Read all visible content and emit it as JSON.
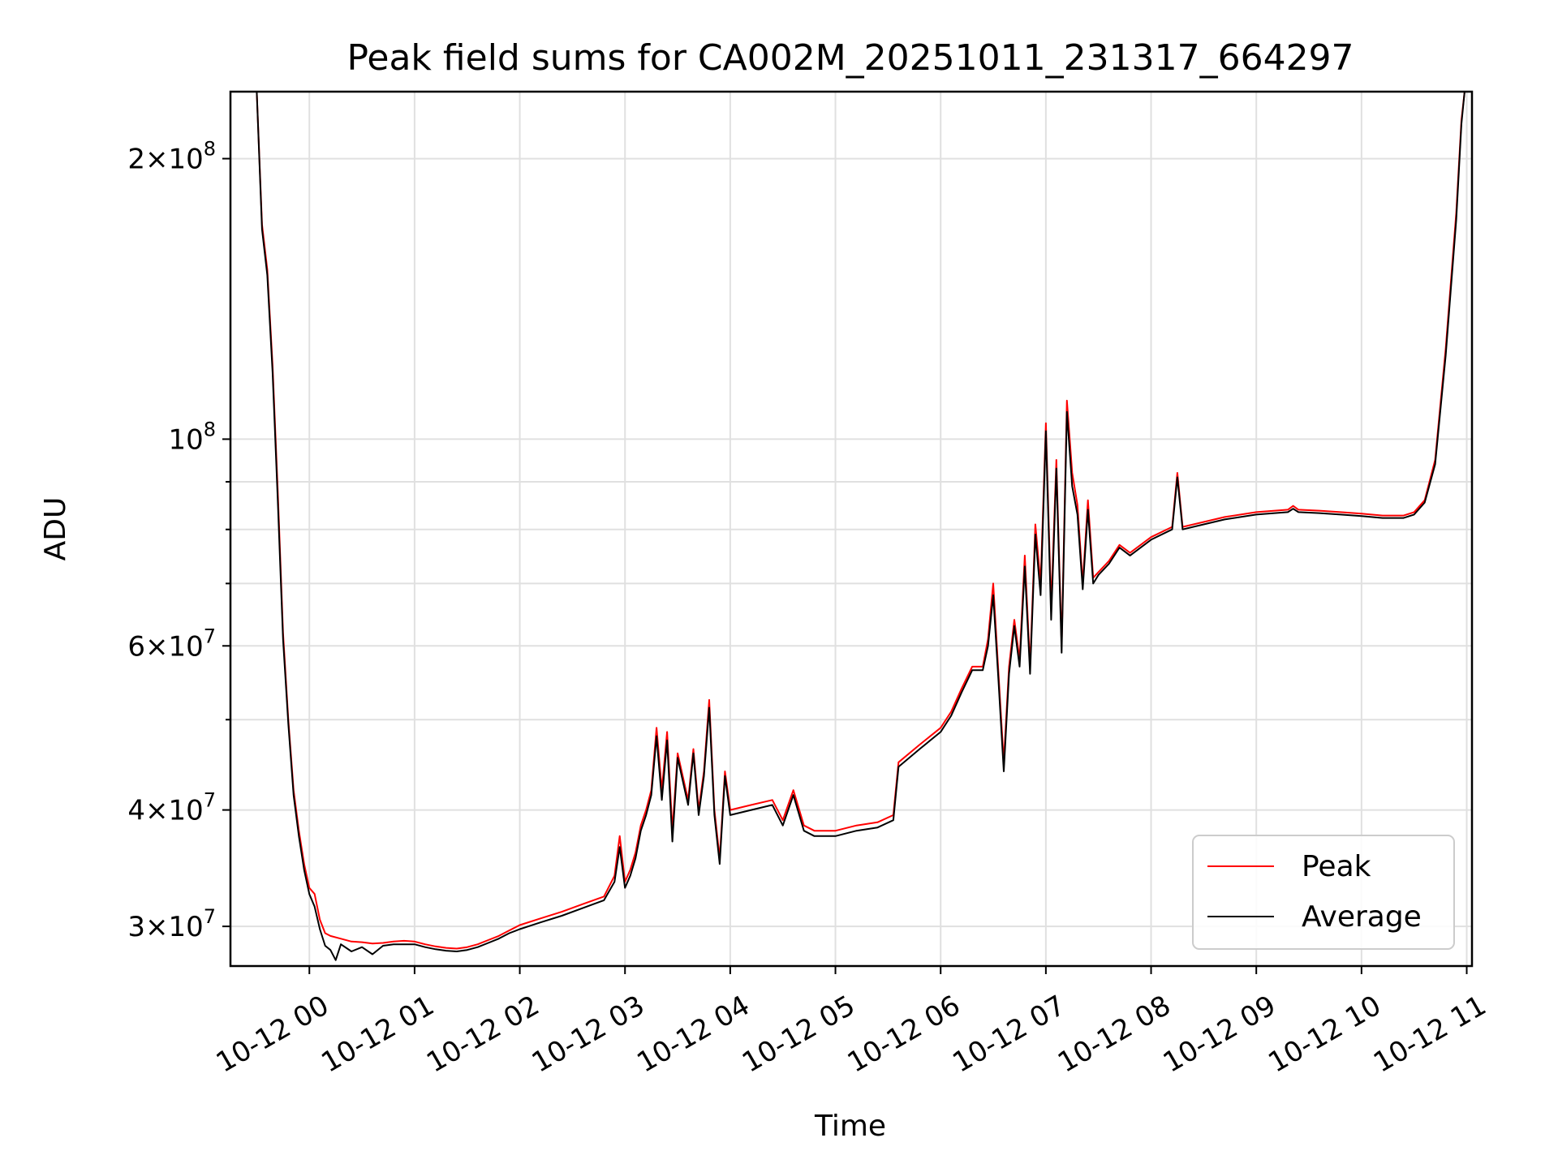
{
  "chart_data": {
    "type": "line",
    "title": "Peak field sums for CA002M_20251011_231317_664297",
    "xlabel": "Time",
    "ylabel": "ADU",
    "yscale": "log",
    "ylim": [
      27200000,
      236000000
    ],
    "xlim": [
      -0.75,
      11.05
    ],
    "grid": true,
    "legend_position": "lower-right",
    "x_ticks": [
      {
        "value": 0,
        "label": "10-12 00"
      },
      {
        "value": 1,
        "label": "10-12 01"
      },
      {
        "value": 2,
        "label": "10-12 02"
      },
      {
        "value": 3,
        "label": "10-12 03"
      },
      {
        "value": 4,
        "label": "10-12 04"
      },
      {
        "value": 5,
        "label": "10-12 05"
      },
      {
        "value": 6,
        "label": "10-12 06"
      },
      {
        "value": 7,
        "label": "10-12 07"
      },
      {
        "value": 8,
        "label": "10-12 08"
      },
      {
        "value": 9,
        "label": "10-12 09"
      },
      {
        "value": 10,
        "label": "10-12 10"
      },
      {
        "value": 11,
        "label": "10-12 11"
      }
    ],
    "y_ticks": [
      {
        "value": 30000000,
        "base": "3",
        "exp": "7"
      },
      {
        "value": 40000000,
        "base": "4",
        "exp": "7"
      },
      {
        "value": 60000000,
        "base": "6",
        "exp": "7"
      },
      {
        "value": 100000000,
        "base": "",
        "exp": "8"
      },
      {
        "value": 200000000,
        "base": "2",
        "exp": "8"
      }
    ],
    "y_minor_ticks": [
      50000000,
      70000000,
      80000000,
      90000000
    ],
    "series": [
      {
        "name": "Peak",
        "color": "#ff0000",
        "points": [
          [
            -0.5,
            236000000
          ],
          [
            -0.45,
            170000000
          ],
          [
            -0.4,
            152000000
          ],
          [
            -0.35,
            120000000
          ],
          [
            -0.3,
            88000000
          ],
          [
            -0.25,
            62000000
          ],
          [
            -0.2,
            50000000
          ],
          [
            -0.15,
            42000000
          ],
          [
            -0.1,
            38000000
          ],
          [
            -0.05,
            35000000
          ],
          [
            0,
            33000000
          ],
          [
            0.05,
            32500000
          ],
          [
            0.1,
            30500000
          ],
          [
            0.15,
            29500000
          ],
          [
            0.2,
            29300000
          ],
          [
            0.3,
            29100000
          ],
          [
            0.4,
            28900000
          ],
          [
            0.5,
            28850000
          ],
          [
            0.6,
            28750000
          ],
          [
            0.7,
            28800000
          ],
          [
            0.8,
            28900000
          ],
          [
            0.9,
            28950000
          ],
          [
            1.0,
            28900000
          ],
          [
            1.1,
            28700000
          ],
          [
            1.2,
            28550000
          ],
          [
            1.3,
            28450000
          ],
          [
            1.4,
            28400000
          ],
          [
            1.5,
            28500000
          ],
          [
            1.6,
            28700000
          ],
          [
            1.7,
            29000000
          ],
          [
            1.8,
            29300000
          ],
          [
            1.9,
            29700000
          ],
          [
            2.0,
            30100000
          ],
          [
            2.2,
            30600000
          ],
          [
            2.4,
            31100000
          ],
          [
            2.6,
            31700000
          ],
          [
            2.8,
            32300000
          ],
          [
            2.9,
            34000000
          ],
          [
            2.95,
            37500000
          ],
          [
            3.0,
            33500000
          ],
          [
            3.05,
            34500000
          ],
          [
            3.1,
            36000000
          ],
          [
            3.15,
            38500000
          ],
          [
            3.2,
            40000000
          ],
          [
            3.25,
            42000000
          ],
          [
            3.3,
            49000000
          ],
          [
            3.35,
            42000000
          ],
          [
            3.4,
            48500000
          ],
          [
            3.45,
            38000000
          ],
          [
            3.5,
            46000000
          ],
          [
            3.6,
            41000000
          ],
          [
            3.65,
            46500000
          ],
          [
            3.7,
            40000000
          ],
          [
            3.75,
            44000000
          ],
          [
            3.8,
            52500000
          ],
          [
            3.85,
            40000000
          ],
          [
            3.9,
            35500000
          ],
          [
            3.95,
            44000000
          ],
          [
            4.0,
            40000000
          ],
          [
            4.2,
            40500000
          ],
          [
            4.4,
            41000000
          ],
          [
            4.5,
            39000000
          ],
          [
            4.6,
            42000000
          ],
          [
            4.7,
            38500000
          ],
          [
            4.8,
            38000000
          ],
          [
            5.0,
            38000000
          ],
          [
            5.2,
            38500000
          ],
          [
            5.4,
            38800000
          ],
          [
            5.55,
            39500000
          ],
          [
            5.6,
            45000000
          ],
          [
            5.8,
            47000000
          ],
          [
            6.0,
            49000000
          ],
          [
            6.1,
            51000000
          ],
          [
            6.2,
            54000000
          ],
          [
            6.3,
            57000000
          ],
          [
            6.4,
            57000000
          ],
          [
            6.45,
            61000000
          ],
          [
            6.5,
            70000000
          ],
          [
            6.55,
            56000000
          ],
          [
            6.6,
            45000000
          ],
          [
            6.65,
            57000000
          ],
          [
            6.7,
            64000000
          ],
          [
            6.75,
            58000000
          ],
          [
            6.8,
            75000000
          ],
          [
            6.85,
            57000000
          ],
          [
            6.9,
            81000000
          ],
          [
            6.95,
            70000000
          ],
          [
            7.0,
            104000000
          ],
          [
            7.05,
            66000000
          ],
          [
            7.1,
            95000000
          ],
          [
            7.15,
            60000000
          ],
          [
            7.2,
            110000000
          ],
          [
            7.25,
            92000000
          ],
          [
            7.3,
            85000000
          ],
          [
            7.35,
            70000000
          ],
          [
            7.4,
            86000000
          ],
          [
            7.45,
            71000000
          ],
          [
            7.5,
            72000000
          ],
          [
            7.6,
            74000000
          ],
          [
            7.7,
            77000000
          ],
          [
            7.8,
            75500000
          ],
          [
            8.0,
            78500000
          ],
          [
            8.2,
            80500000
          ],
          [
            8.25,
            92000000
          ],
          [
            8.3,
            80500000
          ],
          [
            8.5,
            81500000
          ],
          [
            8.7,
            82500000
          ],
          [
            9.0,
            83500000
          ],
          [
            9.3,
            84000000
          ],
          [
            9.35,
            84800000
          ],
          [
            9.4,
            84000000
          ],
          [
            9.6,
            83800000
          ],
          [
            9.8,
            83500000
          ],
          [
            10.0,
            83200000
          ],
          [
            10.2,
            82800000
          ],
          [
            10.4,
            82800000
          ],
          [
            10.5,
            83500000
          ],
          [
            10.6,
            86000000
          ],
          [
            10.7,
            95000000
          ],
          [
            10.8,
            125000000
          ],
          [
            10.9,
            175000000
          ],
          [
            10.95,
            220000000
          ],
          [
            10.98,
            236000000
          ]
        ]
      },
      {
        "name": "Average",
        "color": "#000000",
        "points": [
          [
            -0.5,
            236000000
          ],
          [
            -0.45,
            168000000
          ],
          [
            -0.4,
            150000000
          ],
          [
            -0.35,
            118000000
          ],
          [
            -0.3,
            86000000
          ],
          [
            -0.25,
            61000000
          ],
          [
            -0.2,
            49500000
          ],
          [
            -0.15,
            41500000
          ],
          [
            -0.1,
            37500000
          ],
          [
            -0.05,
            34500000
          ],
          [
            0,
            32500000
          ],
          [
            0.05,
            31500000
          ],
          [
            0.1,
            29800000
          ],
          [
            0.15,
            28600000
          ],
          [
            0.2,
            28300000
          ],
          [
            0.25,
            27600000
          ],
          [
            0.3,
            28700000
          ],
          [
            0.4,
            28200000
          ],
          [
            0.5,
            28500000
          ],
          [
            0.6,
            28000000
          ],
          [
            0.7,
            28600000
          ],
          [
            0.8,
            28700000
          ],
          [
            0.9,
            28700000
          ],
          [
            1.0,
            28700000
          ],
          [
            1.1,
            28500000
          ],
          [
            1.2,
            28350000
          ],
          [
            1.3,
            28250000
          ],
          [
            1.4,
            28200000
          ],
          [
            1.5,
            28300000
          ],
          [
            1.6,
            28500000
          ],
          [
            1.7,
            28800000
          ],
          [
            1.8,
            29100000
          ],
          [
            1.9,
            29500000
          ],
          [
            2.0,
            29800000
          ],
          [
            2.2,
            30300000
          ],
          [
            2.4,
            30800000
          ],
          [
            2.6,
            31400000
          ],
          [
            2.8,
            32000000
          ],
          [
            2.9,
            33500000
          ],
          [
            2.95,
            36500000
          ],
          [
            3.0,
            33000000
          ],
          [
            3.05,
            34000000
          ],
          [
            3.1,
            35500000
          ],
          [
            3.15,
            38000000
          ],
          [
            3.2,
            39500000
          ],
          [
            3.25,
            41500000
          ],
          [
            3.3,
            48000000
          ],
          [
            3.35,
            41000000
          ],
          [
            3.4,
            47500000
          ],
          [
            3.45,
            37000000
          ],
          [
            3.5,
            45500000
          ],
          [
            3.6,
            40500000
          ],
          [
            3.65,
            46000000
          ],
          [
            3.7,
            39500000
          ],
          [
            3.75,
            43500000
          ],
          [
            3.8,
            51500000
          ],
          [
            3.85,
            39500000
          ],
          [
            3.9,
            35000000
          ],
          [
            3.95,
            43500000
          ],
          [
            4.0,
            39500000
          ],
          [
            4.2,
            40000000
          ],
          [
            4.4,
            40500000
          ],
          [
            4.5,
            38500000
          ],
          [
            4.6,
            41500000
          ],
          [
            4.7,
            38000000
          ],
          [
            4.8,
            37500000
          ],
          [
            5.0,
            37500000
          ],
          [
            5.2,
            38000000
          ],
          [
            5.4,
            38300000
          ],
          [
            5.55,
            39000000
          ],
          [
            5.6,
            44500000
          ],
          [
            5.8,
            46500000
          ],
          [
            6.0,
            48500000
          ],
          [
            6.1,
            50500000
          ],
          [
            6.2,
            53500000
          ],
          [
            6.3,
            56500000
          ],
          [
            6.4,
            56500000
          ],
          [
            6.45,
            60000000
          ],
          [
            6.5,
            68000000
          ],
          [
            6.55,
            55000000
          ],
          [
            6.6,
            44000000
          ],
          [
            6.65,
            56000000
          ],
          [
            6.7,
            63000000
          ],
          [
            6.75,
            57000000
          ],
          [
            6.8,
            73000000
          ],
          [
            6.85,
            56000000
          ],
          [
            6.9,
            79000000
          ],
          [
            6.95,
            68000000
          ],
          [
            7.0,
            102000000
          ],
          [
            7.05,
            64000000
          ],
          [
            7.1,
            93000000
          ],
          [
            7.15,
            59000000
          ],
          [
            7.2,
            107000000
          ],
          [
            7.25,
            89000000
          ],
          [
            7.3,
            83000000
          ],
          [
            7.35,
            69000000
          ],
          [
            7.4,
            84000000
          ],
          [
            7.45,
            70000000
          ],
          [
            7.5,
            71500000
          ],
          [
            7.6,
            73500000
          ],
          [
            7.7,
            76500000
          ],
          [
            7.8,
            75000000
          ],
          [
            8.0,
            78000000
          ],
          [
            8.2,
            80000000
          ],
          [
            8.25,
            91000000
          ],
          [
            8.3,
            80000000
          ],
          [
            8.5,
            81000000
          ],
          [
            8.7,
            82000000
          ],
          [
            9.0,
            83000000
          ],
          [
            9.3,
            83500000
          ],
          [
            9.35,
            84200000
          ],
          [
            9.4,
            83500000
          ],
          [
            9.6,
            83300000
          ],
          [
            9.8,
            83000000
          ],
          [
            10.0,
            82700000
          ],
          [
            10.2,
            82300000
          ],
          [
            10.4,
            82300000
          ],
          [
            10.5,
            83000000
          ],
          [
            10.6,
            85500000
          ],
          [
            10.7,
            94000000
          ],
          [
            10.8,
            123000000
          ],
          [
            10.9,
            172000000
          ],
          [
            10.95,
            218000000
          ],
          [
            10.98,
            236000000
          ]
        ]
      }
    ]
  }
}
